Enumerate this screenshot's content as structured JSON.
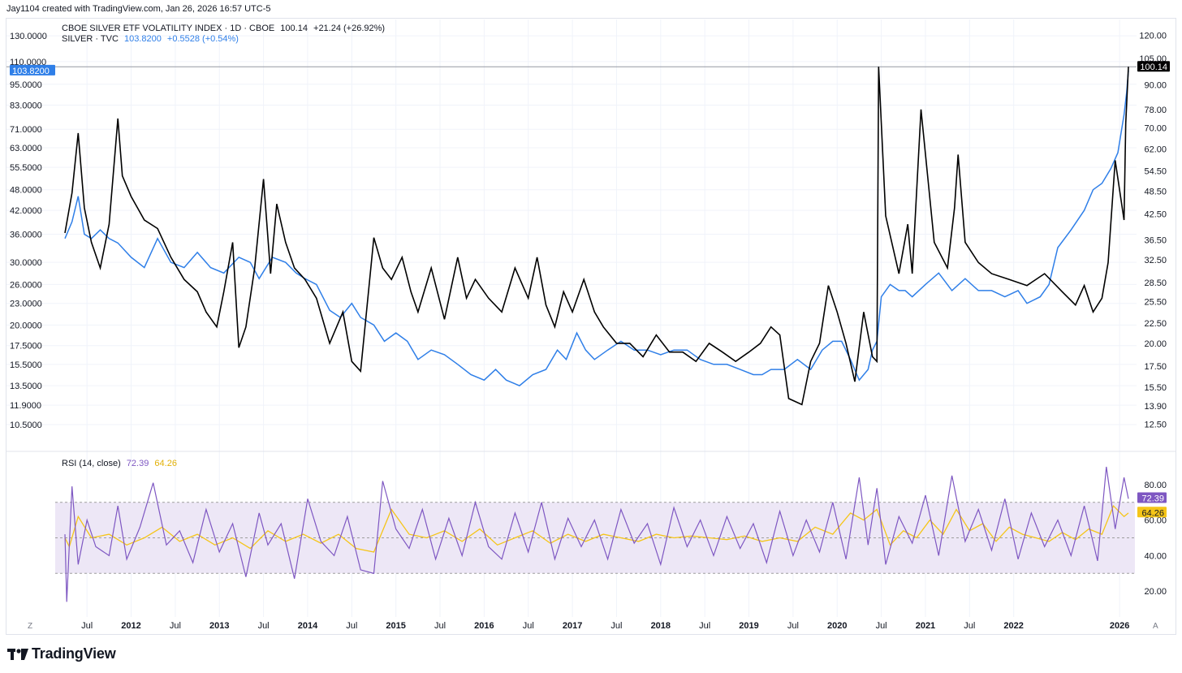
{
  "header": {
    "caption": "Jay1104 created with TradingView.com, Jan 26, 2026 16:57 UTC-5",
    "main_legend": {
      "title": "CBOE SILVER ETF VOLATILITY INDEX · 1D · CBOE",
      "last": "100.14",
      "change": "+21.24 (+26.92%)"
    },
    "compare_legend": {
      "title": "SILVER · TVC",
      "last": "103.8200",
      "change": "+0.5528 (+0.54%)"
    },
    "rsi_legend": {
      "title": "RSI (14, close)",
      "rsi_value": "72.39",
      "ma_value": "64.26"
    }
  },
  "footer": {
    "brand": "TradingView",
    "left_corner": "Z",
    "right_corner": "A"
  },
  "colors": {
    "vxsl": "#000000",
    "silver": "#2f7fe8",
    "rsi": "#7e57c2",
    "rsi_ma": "#f5c518",
    "rsi_band": "#ede7f6",
    "grid": "#f0f3fa",
    "axis_text": "#131722"
  },
  "chart_data": [
    {
      "type": "line",
      "title": "CBOE SILVER ETF VOLATILITY INDEX · 1D · CBOE",
      "x_tick_labels": [
        "Jul",
        "2012",
        "Jul",
        "2013",
        "Jul",
        "2014",
        "Jul",
        "2015",
        "Jul",
        "2016",
        "Jul",
        "2017",
        "Jul",
        "2018",
        "Jul",
        "2019",
        "Jul",
        "2020",
        "Jul",
        "2021",
        "Jul",
        "2022",
        "2026"
      ],
      "y_scale": "log",
      "left_axis": {
        "ticks": [
          "130.0000",
          "110.0000",
          "95.0000",
          "83.0000",
          "71.0000",
          "63.0000",
          "55.5000",
          "48.0000",
          "42.0000",
          "36.0000",
          "30.0000",
          "26.0000",
          "23.0000",
          "20.0000",
          "17.5000",
          "15.5000",
          "13.5000",
          "11.9000",
          "10.5000"
        ],
        "last_label": "103.8200"
      },
      "right_axis": {
        "ticks": [
          "120.00",
          "105.00",
          "90.00",
          "78.00",
          "70.00",
          "62.00",
          "54.50",
          "48.50",
          "42.50",
          "36.50",
          "32.50",
          "28.50",
          "25.50",
          "22.50",
          "20.00",
          "17.50",
          "15.50",
          "13.90",
          "12.50"
        ],
        "last_label": "100.14"
      },
      "series": [
        {
          "name": "CBOE SILVER ETF VOLATILITY INDEX",
          "axis": "right",
          "x": [
            2011.0,
            2011.08,
            2011.15,
            2011.22,
            2011.3,
            2011.4,
            2011.5,
            2011.6,
            2011.65,
            2011.75,
            2011.9,
            2012.05,
            2012.2,
            2012.35,
            2012.5,
            2012.6,
            2012.72,
            2012.8,
            2012.9,
            2012.97,
            2013.05,
            2013.15,
            2013.25,
            2013.33,
            2013.4,
            2013.5,
            2013.6,
            2013.72,
            2013.85,
            2014.0,
            2014.15,
            2014.25,
            2014.35,
            2014.5,
            2014.6,
            2014.7,
            2014.82,
            2014.92,
            2015.0,
            2015.15,
            2015.3,
            2015.45,
            2015.55,
            2015.65,
            2015.8,
            2015.95,
            2016.1,
            2016.25,
            2016.35,
            2016.45,
            2016.55,
            2016.65,
            2016.75,
            2016.88,
            2017.0,
            2017.1,
            2017.25,
            2017.4,
            2017.55,
            2017.7,
            2017.85,
            2018.0,
            2018.15,
            2018.3,
            2018.45,
            2018.6,
            2018.75,
            2018.88,
            2019.0,
            2019.1,
            2019.2,
            2019.35,
            2019.45,
            2019.55,
            2019.65,
            2019.75,
            2019.85,
            2019.95,
            2020.05,
            2020.15,
            2020.2,
            2020.22,
            2020.3,
            2020.45,
            2020.55,
            2020.6,
            2020.7,
            2020.85,
            2021.0,
            2021.08,
            2021.12,
            2021.2,
            2021.35,
            2021.5,
            2021.7,
            2021.9,
            2022.1,
            2022.3,
            2022.45,
            2022.55,
            2022.65,
            2022.75,
            2022.82,
            2022.9,
            2023.0,
            2023.02,
            2023.05
          ],
          "values": [
            38,
            48,
            68,
            44,
            36,
            31,
            40,
            74,
            53,
            47,
            41,
            39,
            33,
            29,
            27,
            24,
            22,
            27,
            36,
            19.5,
            22,
            31,
            52,
            30,
            45,
            36,
            31,
            29,
            26,
            20,
            24,
            18,
            17,
            37,
            31,
            29,
            33,
            27,
            24,
            31,
            23,
            33,
            26,
            29,
            26,
            24,
            31,
            26,
            33,
            25,
            22,
            27,
            24,
            29,
            24,
            22,
            20,
            20,
            18.5,
            21,
            19,
            19,
            18,
            20,
            19,
            18,
            19,
            20,
            22,
            21,
            14.5,
            14,
            18,
            20,
            28,
            24,
            20,
            16,
            24,
            18.5,
            18,
            100,
            42,
            30,
            40,
            30,
            78,
            36,
            31,
            44,
            60,
            36,
            32,
            30,
            29,
            28,
            30,
            27,
            25,
            28,
            24,
            26,
            32,
            58,
            41,
            72,
            100
          ]
        },
        {
          "name": "SILVER · TVC",
          "axis": "left",
          "x": [
            2011.0,
            2011.08,
            2011.15,
            2011.22,
            2011.3,
            2011.4,
            2011.5,
            2011.6,
            2011.75,
            2011.9,
            2012.05,
            2012.2,
            2012.35,
            2012.5,
            2012.65,
            2012.8,
            2012.97,
            2013.1,
            2013.2,
            2013.35,
            2013.5,
            2013.62,
            2013.72,
            2013.85,
            2014.0,
            2014.12,
            2014.25,
            2014.35,
            2014.5,
            2014.62,
            2014.75,
            2014.88,
            2015.0,
            2015.15,
            2015.3,
            2015.45,
            2015.6,
            2015.75,
            2015.88,
            2016.0,
            2016.15,
            2016.3,
            2016.45,
            2016.58,
            2016.68,
            2016.8,
            2016.9,
            2017.0,
            2017.15,
            2017.3,
            2017.45,
            2017.6,
            2017.75,
            2017.9,
            2018.05,
            2018.2,
            2018.35,
            2018.5,
            2018.65,
            2018.8,
            2018.9,
            2019.0,
            2019.15,
            2019.3,
            2019.45,
            2019.58,
            2019.7,
            2019.8,
            2019.9,
            2020.0,
            2020.1,
            2020.15,
            2020.2,
            2020.25,
            2020.35,
            2020.45,
            2020.52,
            2020.6,
            2020.75,
            2020.9,
            2021.05,
            2021.2,
            2021.35,
            2021.5,
            2021.65,
            2021.8,
            2021.9,
            2022.05,
            2022.15,
            2022.25,
            2022.4,
            2022.55,
            2022.65,
            2022.75,
            2022.85,
            2022.93,
            2023.0,
            2023.03,
            2023.05
          ],
          "values": [
            35,
            39,
            46,
            36,
            35,
            37,
            35,
            34,
            31,
            29,
            35,
            30,
            29,
            32,
            29,
            28,
            31,
            30,
            27,
            31,
            30,
            28,
            27,
            26,
            22,
            21,
            23,
            21,
            20,
            18,
            19,
            18,
            16,
            17,
            16.5,
            15.5,
            14.5,
            14,
            15,
            14,
            13.5,
            14.5,
            15,
            17,
            16,
            19,
            17,
            16,
            17,
            18,
            17,
            17,
            16.5,
            17,
            17,
            16,
            15.5,
            15.5,
            15,
            14.5,
            14.5,
            15,
            15,
            16,
            15,
            17,
            18,
            18,
            16,
            14,
            15,
            17,
            18,
            24,
            26,
            25,
            25,
            24,
            26,
            28,
            25,
            27,
            25,
            25,
            24,
            25,
            23,
            24,
            26,
            33,
            37,
            42,
            48,
            50,
            55,
            61,
            78,
            90,
            103.82
          ]
        }
      ]
    },
    {
      "type": "line",
      "title": "RSI (14, close)",
      "y_ticks": [
        "80.00",
        "60.00",
        "40.00",
        "20.00"
      ],
      "ylim": [
        10,
        90
      ],
      "bands": {
        "upper": 70,
        "middle": 50,
        "lower": 30
      },
      "last_values": {
        "rsi": "72.39",
        "ma": "64.26"
      },
      "series": [
        {
          "name": "RSI",
          "x": [
            2011.0,
            2011.02,
            2011.08,
            2011.15,
            2011.25,
            2011.35,
            2011.5,
            2011.6,
            2011.7,
            2011.85,
            2012.0,
            2012.15,
            2012.3,
            2012.45,
            2012.6,
            2012.75,
            2012.9,
            2013.05,
            2013.2,
            2013.3,
            2013.45,
            2013.6,
            2013.75,
            2013.9,
            2014.05,
            2014.2,
            2014.35,
            2014.5,
            2014.6,
            2014.75,
            2014.9,
            2015.05,
            2015.2,
            2015.35,
            2015.5,
            2015.65,
            2015.8,
            2015.95,
            2016.1,
            2016.25,
            2016.4,
            2016.55,
            2016.7,
            2016.85,
            2017.0,
            2017.15,
            2017.3,
            2017.45,
            2017.6,
            2017.75,
            2017.9,
            2018.05,
            2018.2,
            2018.35,
            2018.5,
            2018.65,
            2018.8,
            2018.95,
            2019.1,
            2019.25,
            2019.4,
            2019.55,
            2019.7,
            2019.85,
            2020.0,
            2020.1,
            2020.2,
            2020.3,
            2020.45,
            2020.6,
            2020.75,
            2020.9,
            2021.05,
            2021.2,
            2021.35,
            2021.5,
            2021.65,
            2021.8,
            2021.95,
            2022.1,
            2022.25,
            2022.4,
            2022.55,
            2022.7,
            2022.8,
            2022.9,
            2023.0,
            2023.05
          ],
          "values": [
            52,
            14,
            79,
            35,
            60,
            45,
            40,
            68,
            38,
            56,
            81,
            46,
            54,
            36,
            66,
            42,
            58,
            28,
            64,
            46,
            58,
            27,
            72,
            48,
            40,
            62,
            32,
            30,
            82,
            55,
            44,
            66,
            38,
            61,
            40,
            70,
            45,
            38,
            64,
            42,
            70,
            38,
            61,
            45,
            60,
            38,
            66,
            47,
            58,
            35,
            67,
            45,
            60,
            40,
            62,
            44,
            58,
            36,
            65,
            40,
            60,
            42,
            70,
            38,
            84,
            46,
            78,
            35,
            62,
            47,
            74,
            40,
            85,
            48,
            66,
            43,
            72,
            38,
            64,
            45,
            60,
            40,
            68,
            37,
            90,
            55,
            84,
            72
          ]
        },
        {
          "name": "RSI MA",
          "x": [
            2011.0,
            2011.05,
            2011.15,
            2011.3,
            2011.5,
            2011.7,
            2011.9,
            2012.1,
            2012.3,
            2012.5,
            2012.7,
            2012.9,
            2013.1,
            2013.3,
            2013.5,
            2013.7,
            2013.9,
            2014.1,
            2014.3,
            2014.5,
            2014.7,
            2014.9,
            2015.1,
            2015.3,
            2015.5,
            2015.7,
            2015.9,
            2016.1,
            2016.3,
            2016.5,
            2016.7,
            2016.9,
            2017.1,
            2017.3,
            2017.5,
            2017.7,
            2017.9,
            2018.1,
            2018.3,
            2018.5,
            2018.7,
            2018.9,
            2019.1,
            2019.3,
            2019.5,
            2019.7,
            2019.9,
            2020.05,
            2020.2,
            2020.35,
            2020.5,
            2020.65,
            2020.8,
            2020.95,
            2021.1,
            2021.25,
            2021.4,
            2021.55,
            2021.7,
            2021.85,
            2022.0,
            2022.15,
            2022.3,
            2022.45,
            2022.6,
            2022.75,
            2022.88,
            2023.0,
            2023.05
          ],
          "values": [
            50,
            45,
            62,
            50,
            52,
            46,
            50,
            56,
            48,
            52,
            46,
            50,
            44,
            54,
            48,
            52,
            47,
            52,
            44,
            42,
            66,
            52,
            50,
            54,
            48,
            55,
            46,
            50,
            54,
            47,
            52,
            48,
            52,
            50,
            48,
            52,
            50,
            51,
            50,
            49,
            51,
            48,
            50,
            48,
            56,
            52,
            64,
            60,
            66,
            46,
            54,
            50,
            60,
            52,
            66,
            54,
            58,
            48,
            56,
            52,
            50,
            48,
            53,
            49,
            55,
            52,
            68,
            62,
            64
          ]
        }
      ]
    }
  ]
}
